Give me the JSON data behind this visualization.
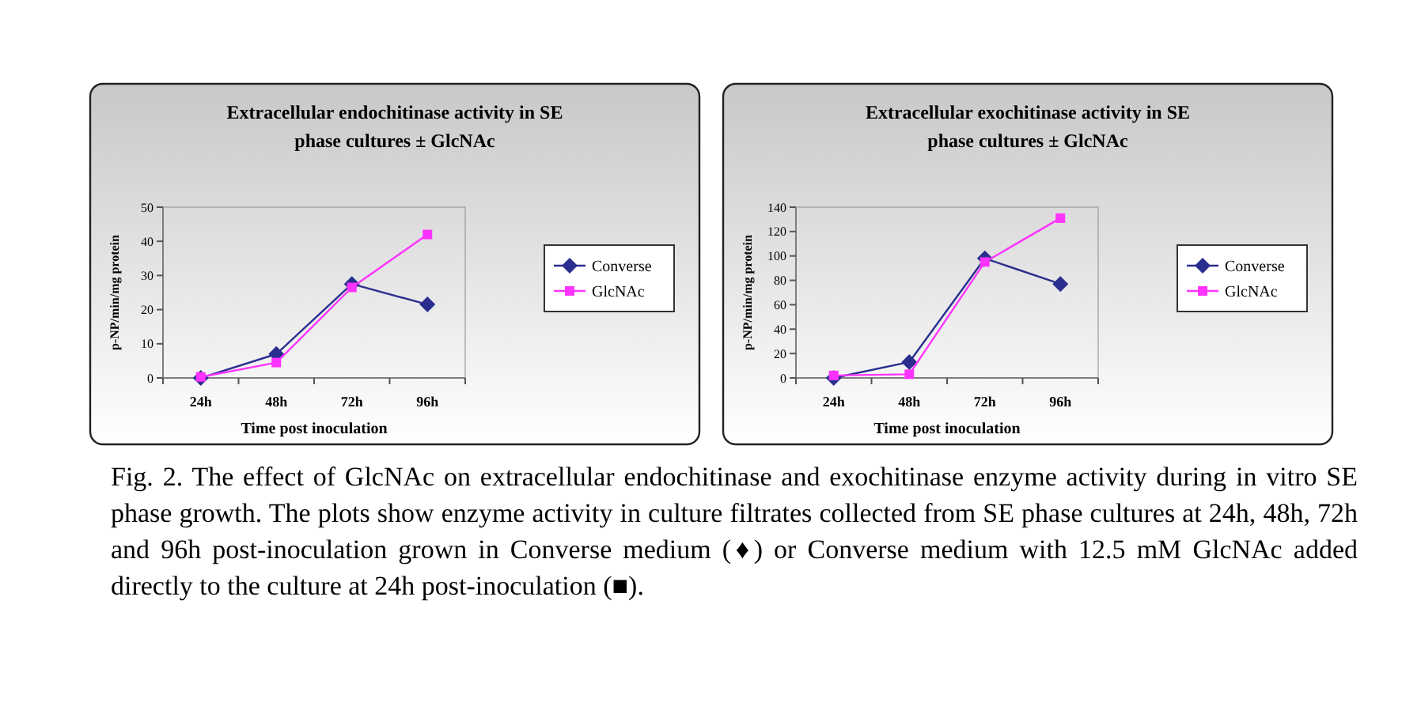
{
  "chart_data": [
    {
      "type": "line",
      "title": "Extracellular endochitinase activity in SE phase cultures ± GlcNAc",
      "xlabel": "Time post inoculation",
      "ylabel": "p-NP/min/mg protein",
      "categories": [
        "24h",
        "48h",
        "72h",
        "96h"
      ],
      "ylim": [
        0,
        50
      ],
      "yticks": [
        0,
        10,
        20,
        30,
        40,
        50
      ],
      "legend": "right",
      "grid": false,
      "series": [
        {
          "name": "Converse",
          "color": "#2a2f8f",
          "marker": "diamond",
          "values": [
            0,
            7,
            27.5,
            21.5
          ]
        },
        {
          "name": "GlcNAc",
          "color": "#ff33ff",
          "marker": "square",
          "values": [
            0.3,
            4.5,
            26.5,
            42
          ]
        }
      ],
      "annotations": [
        "Fig. 2. The effect of GlcNAc on extracellular endochitinase and exochitinase enzyme activity during in vitro SE phase growth. The plots show enzyme activity in culture filtrates collected from SE phase cultures at 24h, 48h, 72h and 96h post-inoculation grown in Converse medium (♦) or Converse medium with 12.5 mM GlcNAc added directly to the culture at 24h post-inoculation (■)."
      ]
    },
    {
      "type": "line",
      "title": "Extracellular exochitinase activity in SE phase cultures ± GlcNAc",
      "xlabel": "Time post inoculation",
      "ylabel": "p-NP/min/mg protein",
      "categories": [
        "24h",
        "48h",
        "72h",
        "96h"
      ],
      "ylim": [
        0,
        140
      ],
      "yticks": [
        0,
        20,
        40,
        60,
        80,
        100,
        120,
        140
      ],
      "legend": "right",
      "grid": false,
      "series": [
        {
          "name": "Converse",
          "color": "#2a2f8f",
          "marker": "diamond",
          "values": [
            0,
            13,
            98,
            77
          ]
        },
        {
          "name": "GlcNAc",
          "color": "#ff33ff",
          "marker": "square",
          "values": [
            2,
            3,
            95,
            131
          ]
        }
      ]
    }
  ]
}
